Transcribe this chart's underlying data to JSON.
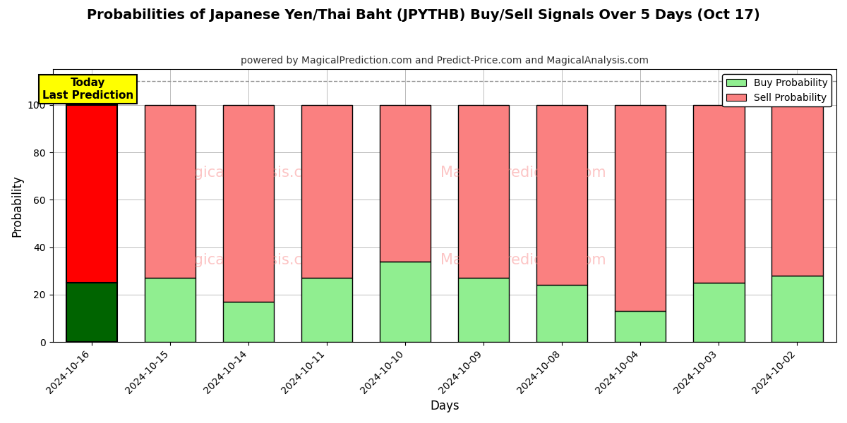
{
  "title": "Probabilities of Japanese Yen/Thai Baht (JPYTHB) Buy/Sell Signals Over 5 Days (Oct 17)",
  "subtitle": "powered by MagicalPrediction.com and Predict-Price.com and MagicalAnalysis.com",
  "xlabel": "Days",
  "ylabel": "Probability",
  "dates": [
    "2024-10-16",
    "2024-10-15",
    "2024-10-14",
    "2024-10-11",
    "2024-10-10",
    "2024-10-09",
    "2024-10-08",
    "2024-10-04",
    "2024-10-03",
    "2024-10-02"
  ],
  "buy_values": [
    25,
    27,
    17,
    27,
    34,
    27,
    24,
    13,
    25,
    28
  ],
  "sell_values": [
    75,
    73,
    83,
    73,
    66,
    73,
    76,
    87,
    75,
    72
  ],
  "today_bar_buy_color": "#006400",
  "today_bar_sell_color": "#ff0000",
  "other_buy_color": "#90EE90",
  "other_sell_color": "#FA8080",
  "today_annotation_text": "Today\nLast Prediction",
  "today_annotation_bg": "#ffff00",
  "dashed_line_y": 110,
  "ylim": [
    0,
    115
  ],
  "yticks": [
    0,
    20,
    40,
    60,
    80,
    100
  ],
  "legend_buy_label": "Buy Probability",
  "legend_sell_label": "Sell Probability",
  "bar_edge_color": "#000000",
  "bar_linewidth": 1.0,
  "grid_color": "#bbbbbb",
  "background_color": "#ffffff"
}
